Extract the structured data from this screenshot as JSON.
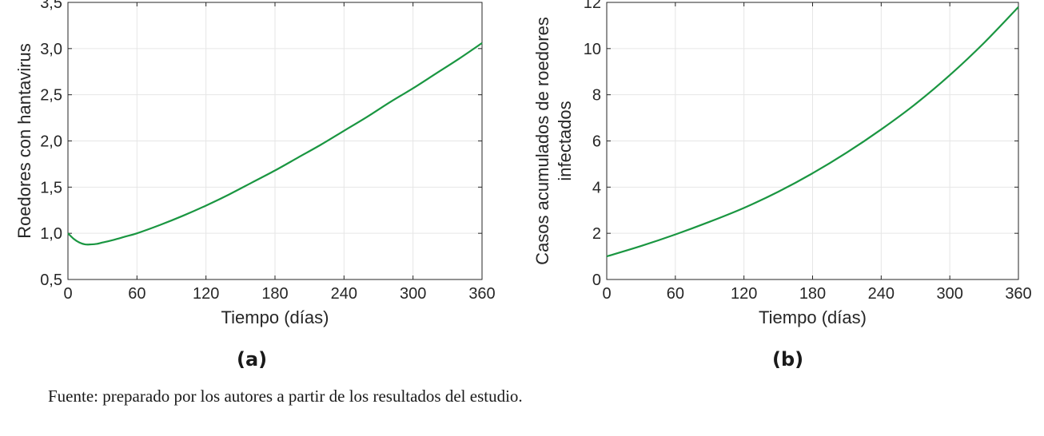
{
  "chart_data": [
    {
      "type": "line",
      "xlabel": "Tiempo (días)",
      "ylabel": "Roedores con hantavirus",
      "xlim": [
        0,
        360
      ],
      "ylim": [
        0.5,
        3.5
      ],
      "xticks": [
        0,
        60,
        120,
        180,
        240,
        300,
        360
      ],
      "yticks": [
        0.5,
        1.0,
        1.5,
        2.0,
        2.5,
        3.0,
        3.5
      ],
      "xtick_labels": [
        "0",
        "60",
        "120",
        "180",
        "240",
        "300",
        "360"
      ],
      "ytick_labels": [
        "0,5",
        "1,0",
        "1,5",
        "2,0",
        "2,5",
        "3,0",
        "3,5"
      ],
      "grid": true,
      "series": [
        {
          "color": "#1a9641",
          "x": [
            0,
            5,
            10,
            15,
            20,
            25,
            30,
            40,
            50,
            60,
            80,
            100,
            120,
            140,
            160,
            180,
            200,
            220,
            240,
            260,
            280,
            300,
            320,
            340,
            360
          ],
          "y": [
            1.0,
            0.94,
            0.9,
            0.88,
            0.88,
            0.885,
            0.9,
            0.93,
            0.965,
            1.0,
            1.09,
            1.19,
            1.3,
            1.42,
            1.55,
            1.68,
            1.82,
            1.96,
            2.11,
            2.26,
            2.42,
            2.57,
            2.73,
            2.89,
            3.06
          ]
        }
      ]
    },
    {
      "type": "line",
      "xlabel": "Tiempo (días)",
      "ylabel": "Casos acumulados de roedores infectados",
      "ylabel_lines": [
        "Casos acumulados de roedores",
        "infectados"
      ],
      "xlim": [
        0,
        360
      ],
      "ylim": [
        0,
        12
      ],
      "xticks": [
        0,
        60,
        120,
        180,
        240,
        300,
        360
      ],
      "yticks": [
        0,
        2,
        4,
        6,
        8,
        10,
        12
      ],
      "xtick_labels": [
        "0",
        "60",
        "120",
        "180",
        "240",
        "300",
        "360"
      ],
      "ytick_labels": [
        "0",
        "2",
        "4",
        "6",
        "8",
        "10",
        "12"
      ],
      "grid": true,
      "series": [
        {
          "color": "#1a9641",
          "x": [
            0,
            30,
            60,
            90,
            120,
            150,
            180,
            210,
            240,
            270,
            300,
            330,
            360
          ],
          "y": [
            1.0,
            1.45,
            1.95,
            2.5,
            3.1,
            3.8,
            4.6,
            5.5,
            6.5,
            7.6,
            8.85,
            10.25,
            11.8
          ]
        }
      ]
    }
  ],
  "labels": {
    "panel_a": "(a)",
    "panel_b": "(b)"
  },
  "source_note": "Fuente: preparado por los autores a partir de los resultados del estudio."
}
